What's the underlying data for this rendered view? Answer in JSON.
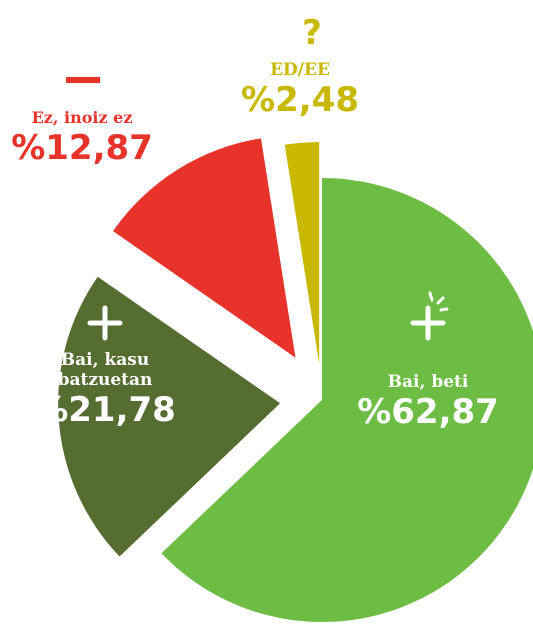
{
  "chart_data": {
    "type": "pie",
    "categories": [
      "Bai, beti",
      "Bai, kasu batzuetan",
      "Ez, inoiz ez",
      "ED/EE"
    ],
    "values": [
      62.87,
      21.78,
      12.87,
      2.48
    ],
    "value_labels": [
      "%62,87",
      "%21,78",
      "%12,87",
      "%2,48"
    ],
    "colors": [
      "#6dbd45",
      "#566d32",
      "#e8332a",
      "#c8b900"
    ]
  }
}
